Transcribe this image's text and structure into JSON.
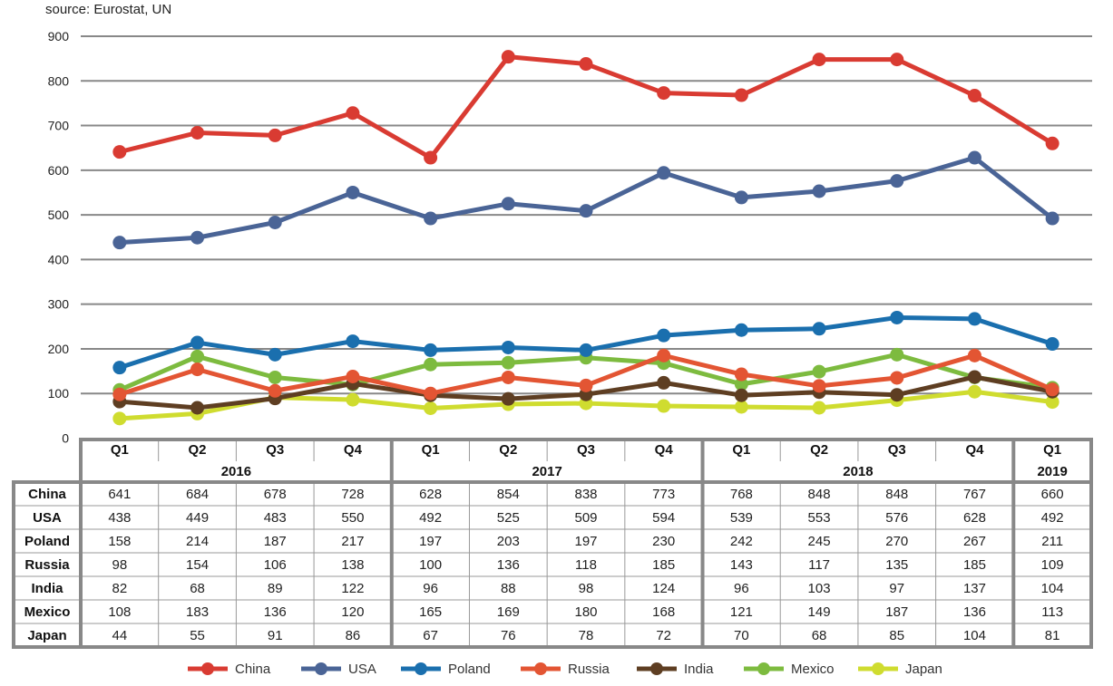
{
  "chart_data": {
    "type": "line",
    "source": "source: Eurostat, UN",
    "title": "",
    "xlabel": "",
    "ylabel": "",
    "ylim": [
      0,
      900
    ],
    "yticks": [
      0,
      100,
      200,
      300,
      400,
      500,
      600,
      700,
      800,
      900
    ],
    "grid": true,
    "legend_position": "bottom",
    "categories": [
      "Q1",
      "Q2",
      "Q3",
      "Q4",
      "Q1",
      "Q2",
      "Q3",
      "Q4",
      "Q1",
      "Q2",
      "Q3",
      "Q4",
      "Q1"
    ],
    "years": [
      {
        "label": "2016",
        "span": 4
      },
      {
        "label": "2017",
        "span": 4
      },
      {
        "label": "2018",
        "span": 4
      },
      {
        "label": "2019",
        "span": 1
      }
    ],
    "series": [
      {
        "name": "China",
        "color": "#d93b32",
        "values": [
          641,
          684,
          678,
          728,
          628,
          854,
          838,
          773,
          768,
          848,
          848,
          767,
          660
        ]
      },
      {
        "name": "USA",
        "color": "#4a6496",
        "values": [
          438,
          449,
          483,
          550,
          492,
          525,
          509,
          594,
          539,
          553,
          576,
          628,
          492
        ]
      },
      {
        "name": "Poland",
        "color": "#1a6fae",
        "values": [
          158,
          214,
          187,
          217,
          197,
          203,
          197,
          230,
          242,
          245,
          270,
          267,
          211
        ]
      },
      {
        "name": "Russia",
        "color": "#e35533",
        "values": [
          98,
          154,
          106,
          138,
          100,
          136,
          118,
          185,
          143,
          117,
          135,
          185,
          109
        ]
      },
      {
        "name": "India",
        "color": "#5e3e22",
        "values": [
          82,
          68,
          89,
          122,
          96,
          88,
          98,
          124,
          96,
          103,
          97,
          137,
          104
        ]
      },
      {
        "name": "Mexico",
        "color": "#7dbb3f",
        "values": [
          108,
          183,
          136,
          120,
          165,
          169,
          180,
          168,
          121,
          149,
          187,
          136,
          113
        ]
      },
      {
        "name": "Japan",
        "color": "#cfdc2f",
        "values": [
          44,
          55,
          91,
          86,
          67,
          76,
          78,
          72,
          70,
          68,
          85,
          104,
          81
        ]
      }
    ]
  }
}
